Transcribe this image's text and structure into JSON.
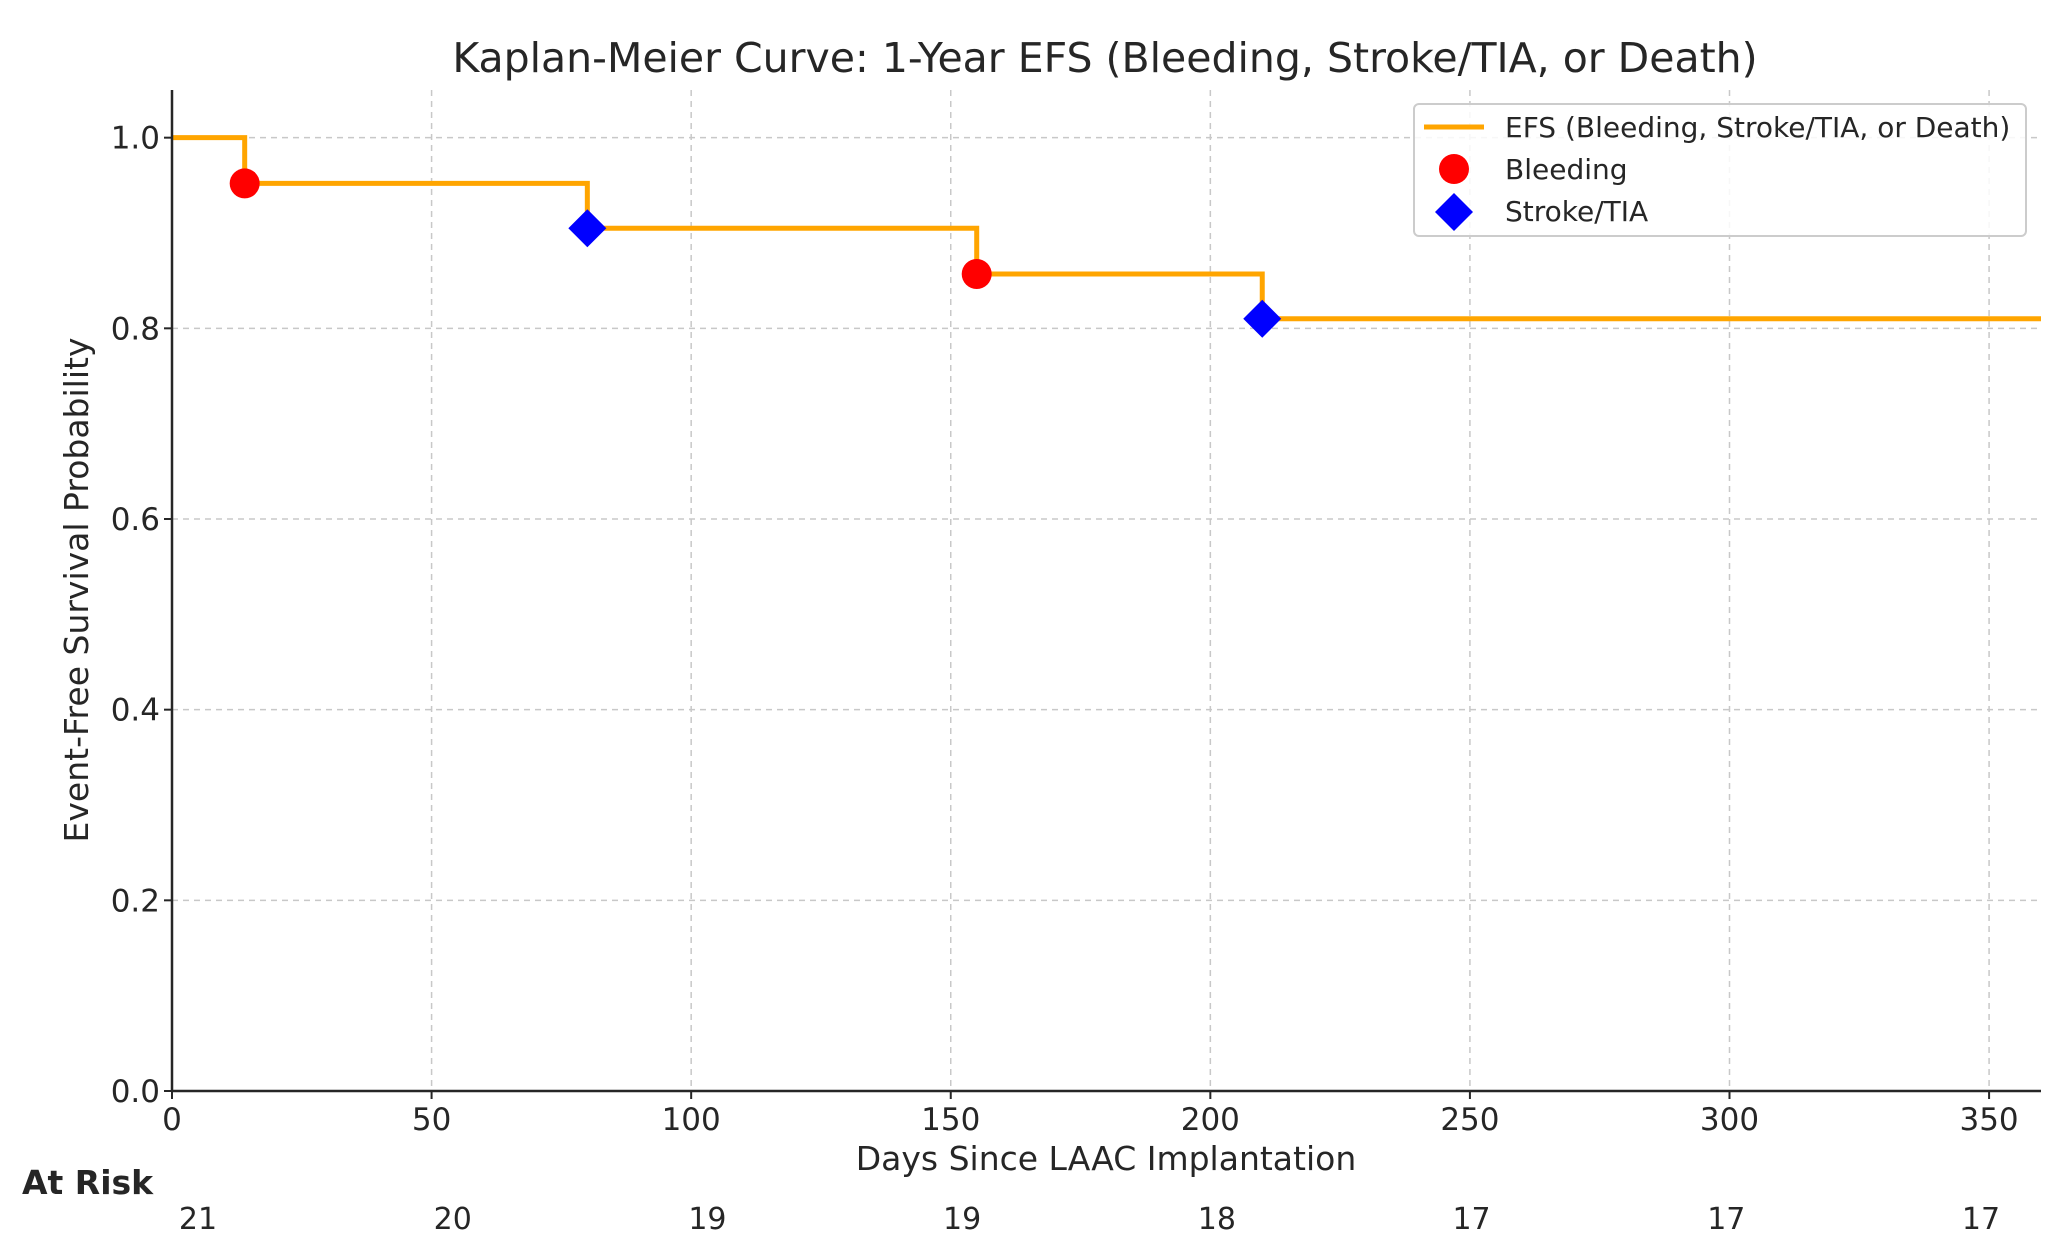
{
  "chart_data": {
    "type": "line",
    "title": "Kaplan-Meier Curve: 1-Year EFS (Bleeding, Stroke/TIA, or Death)",
    "xlabel": "Days Since LAAC Implantation",
    "ylabel": "Event-Free Survival Probability",
    "xlim": [
      0,
      360
    ],
    "ylim": [
      0,
      1.05
    ],
    "xticks": [
      0,
      50,
      100,
      150,
      200,
      250,
      300,
      350
    ],
    "yticks": [
      0.0,
      0.2,
      0.4,
      0.6,
      0.8,
      1.0
    ],
    "xtick_labels": [
      "0",
      "50",
      "100",
      "150",
      "200",
      "250",
      "300",
      "350"
    ],
    "ytick_labels": [
      "0.0",
      "0.2",
      "0.4",
      "0.6",
      "0.8",
      "1.0"
    ],
    "grid": true,
    "legend_position": "top-right",
    "series": [
      {
        "name": "EFS (Bleeding, Stroke/TIA, or Death)",
        "kind": "step",
        "color": "#FFA500",
        "x": [
          0,
          14,
          80,
          155,
          210,
          360
        ],
        "y": [
          1.0,
          0.952,
          0.905,
          0.857,
          0.81,
          0.81
        ]
      },
      {
        "name": "Bleeding",
        "kind": "scatter",
        "marker": "circle",
        "color": "#FF0000",
        "x": [
          14,
          155
        ],
        "y": [
          0.952,
          0.857
        ]
      },
      {
        "name": "Stroke/TIA",
        "kind": "scatter",
        "marker": "diamond",
        "color": "#0000FF",
        "x": [
          80,
          210
        ],
        "y": [
          0.905,
          0.81
        ]
      }
    ],
    "at_risk": {
      "title": "At Risk",
      "values": [
        "21",
        "20",
        "19",
        "19",
        "18",
        "17",
        "17",
        "17"
      ]
    }
  }
}
